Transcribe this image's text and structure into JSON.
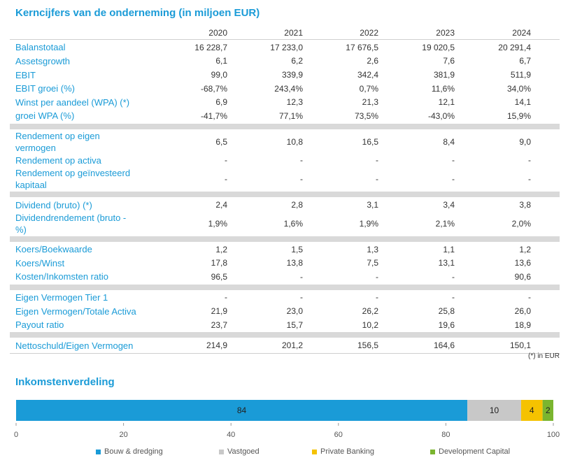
{
  "title": "Kerncijfers van de onderneming (in miljoen EUR)",
  "years": [
    "2020",
    "2021",
    "2022",
    "2023",
    "2024"
  ],
  "groups": [
    [
      {
        "label": [
          "Balanstotaal"
        ],
        "values": [
          "16 228,7",
          "17 233,0",
          "17 676,5",
          "19 020,5",
          "20 291,4"
        ]
      },
      {
        "label": [
          "Assetsgrowth"
        ],
        "values": [
          "6,1",
          "6,2",
          "2,6",
          "7,6",
          "6,7"
        ]
      },
      {
        "label": [
          "EBIT"
        ],
        "values": [
          "99,0",
          "339,9",
          "342,4",
          "381,9",
          "511,9"
        ]
      },
      {
        "label": [
          "EBIT groei (%)"
        ],
        "values": [
          "-68,7%",
          "243,4%",
          "0,7%",
          "11,6%",
          "34,0%"
        ]
      },
      {
        "label": [
          "Winst per aandeel (WPA) (*)"
        ],
        "values": [
          "6,9",
          "12,3",
          "21,3",
          "12,1",
          "14,1"
        ]
      },
      {
        "label": [
          "groei WPA (%)"
        ],
        "values": [
          "-41,7%",
          "77,1%",
          "73,5%",
          "-43,0%",
          "15,9%"
        ]
      }
    ],
    [
      {
        "label": [
          "Rendement op eigen",
          "vermogen"
        ],
        "values": [
          "6,5",
          "10,8",
          "16,5",
          "8,4",
          "9,0"
        ]
      },
      {
        "label": [
          "Rendement op activa"
        ],
        "values": [
          "-",
          "-",
          "-",
          "-",
          "-"
        ]
      },
      {
        "label": [
          "Rendement op geïnvesteerd",
          "kapitaal"
        ],
        "values": [
          "-",
          "-",
          "-",
          "-",
          "-"
        ]
      }
    ],
    [
      {
        "label": [
          "Dividend (bruto) (*)"
        ],
        "values": [
          "2,4",
          "2,8",
          "3,1",
          "3,4",
          "3,8"
        ]
      },
      {
        "label": [
          "Dividendrendement (bruto -",
          "%)"
        ],
        "values": [
          "1,9%",
          "1,6%",
          "1,9%",
          "2,1%",
          "2,0%"
        ]
      }
    ],
    [
      {
        "label": [
          "Koers/Boekwaarde"
        ],
        "values": [
          "1,2",
          "1,5",
          "1,3",
          "1,1",
          "1,2"
        ]
      },
      {
        "label": [
          "Koers/Winst"
        ],
        "values": [
          "17,8",
          "13,8",
          "7,5",
          "13,1",
          "13,6"
        ]
      },
      {
        "label": [
          "Kosten/Inkomsten ratio"
        ],
        "values": [
          "96,5",
          "-",
          "-",
          "-",
          "90,6"
        ]
      }
    ],
    [
      {
        "label": [
          "Eigen Vermogen Tier 1"
        ],
        "values": [
          "-",
          "-",
          "-",
          "-",
          "-"
        ]
      },
      {
        "label": [
          "Eigen Vermogen/Totale Activa"
        ],
        "values": [
          "21,9",
          "23,0",
          "26,2",
          "25,8",
          "26,0"
        ]
      },
      {
        "label": [
          "Payout ratio"
        ],
        "values": [
          "23,7",
          "15,7",
          "10,2",
          "19,6",
          "18,9"
        ]
      }
    ],
    [
      {
        "label": [
          "Nettoschuld/Eigen Vermogen"
        ],
        "values": [
          "214,9",
          "201,2",
          "156,5",
          "164,6",
          "150,1"
        ]
      }
    ]
  ],
  "footnote": "(*) in EUR",
  "chart_title": "Inkomstenverdeling",
  "chart_data": {
    "type": "bar",
    "orientation": "horizontal-stacked",
    "title": "Inkomstenverdeling",
    "series": [
      {
        "name": "Bouw & dredging",
        "value": 84,
        "color": "#1a9bd7"
      },
      {
        "name": "Vastgoed",
        "value": 10,
        "color": "#c8c8c8"
      },
      {
        "name": "Private Banking",
        "value": 4,
        "color": "#f5c200"
      },
      {
        "name": "Development Capital",
        "value": 2,
        "color": "#7ab52f"
      }
    ],
    "xlim": [
      0,
      100
    ],
    "ticks": [
      "0",
      "20",
      "40",
      "60",
      "80",
      "100"
    ],
    "legend": "bottom"
  }
}
